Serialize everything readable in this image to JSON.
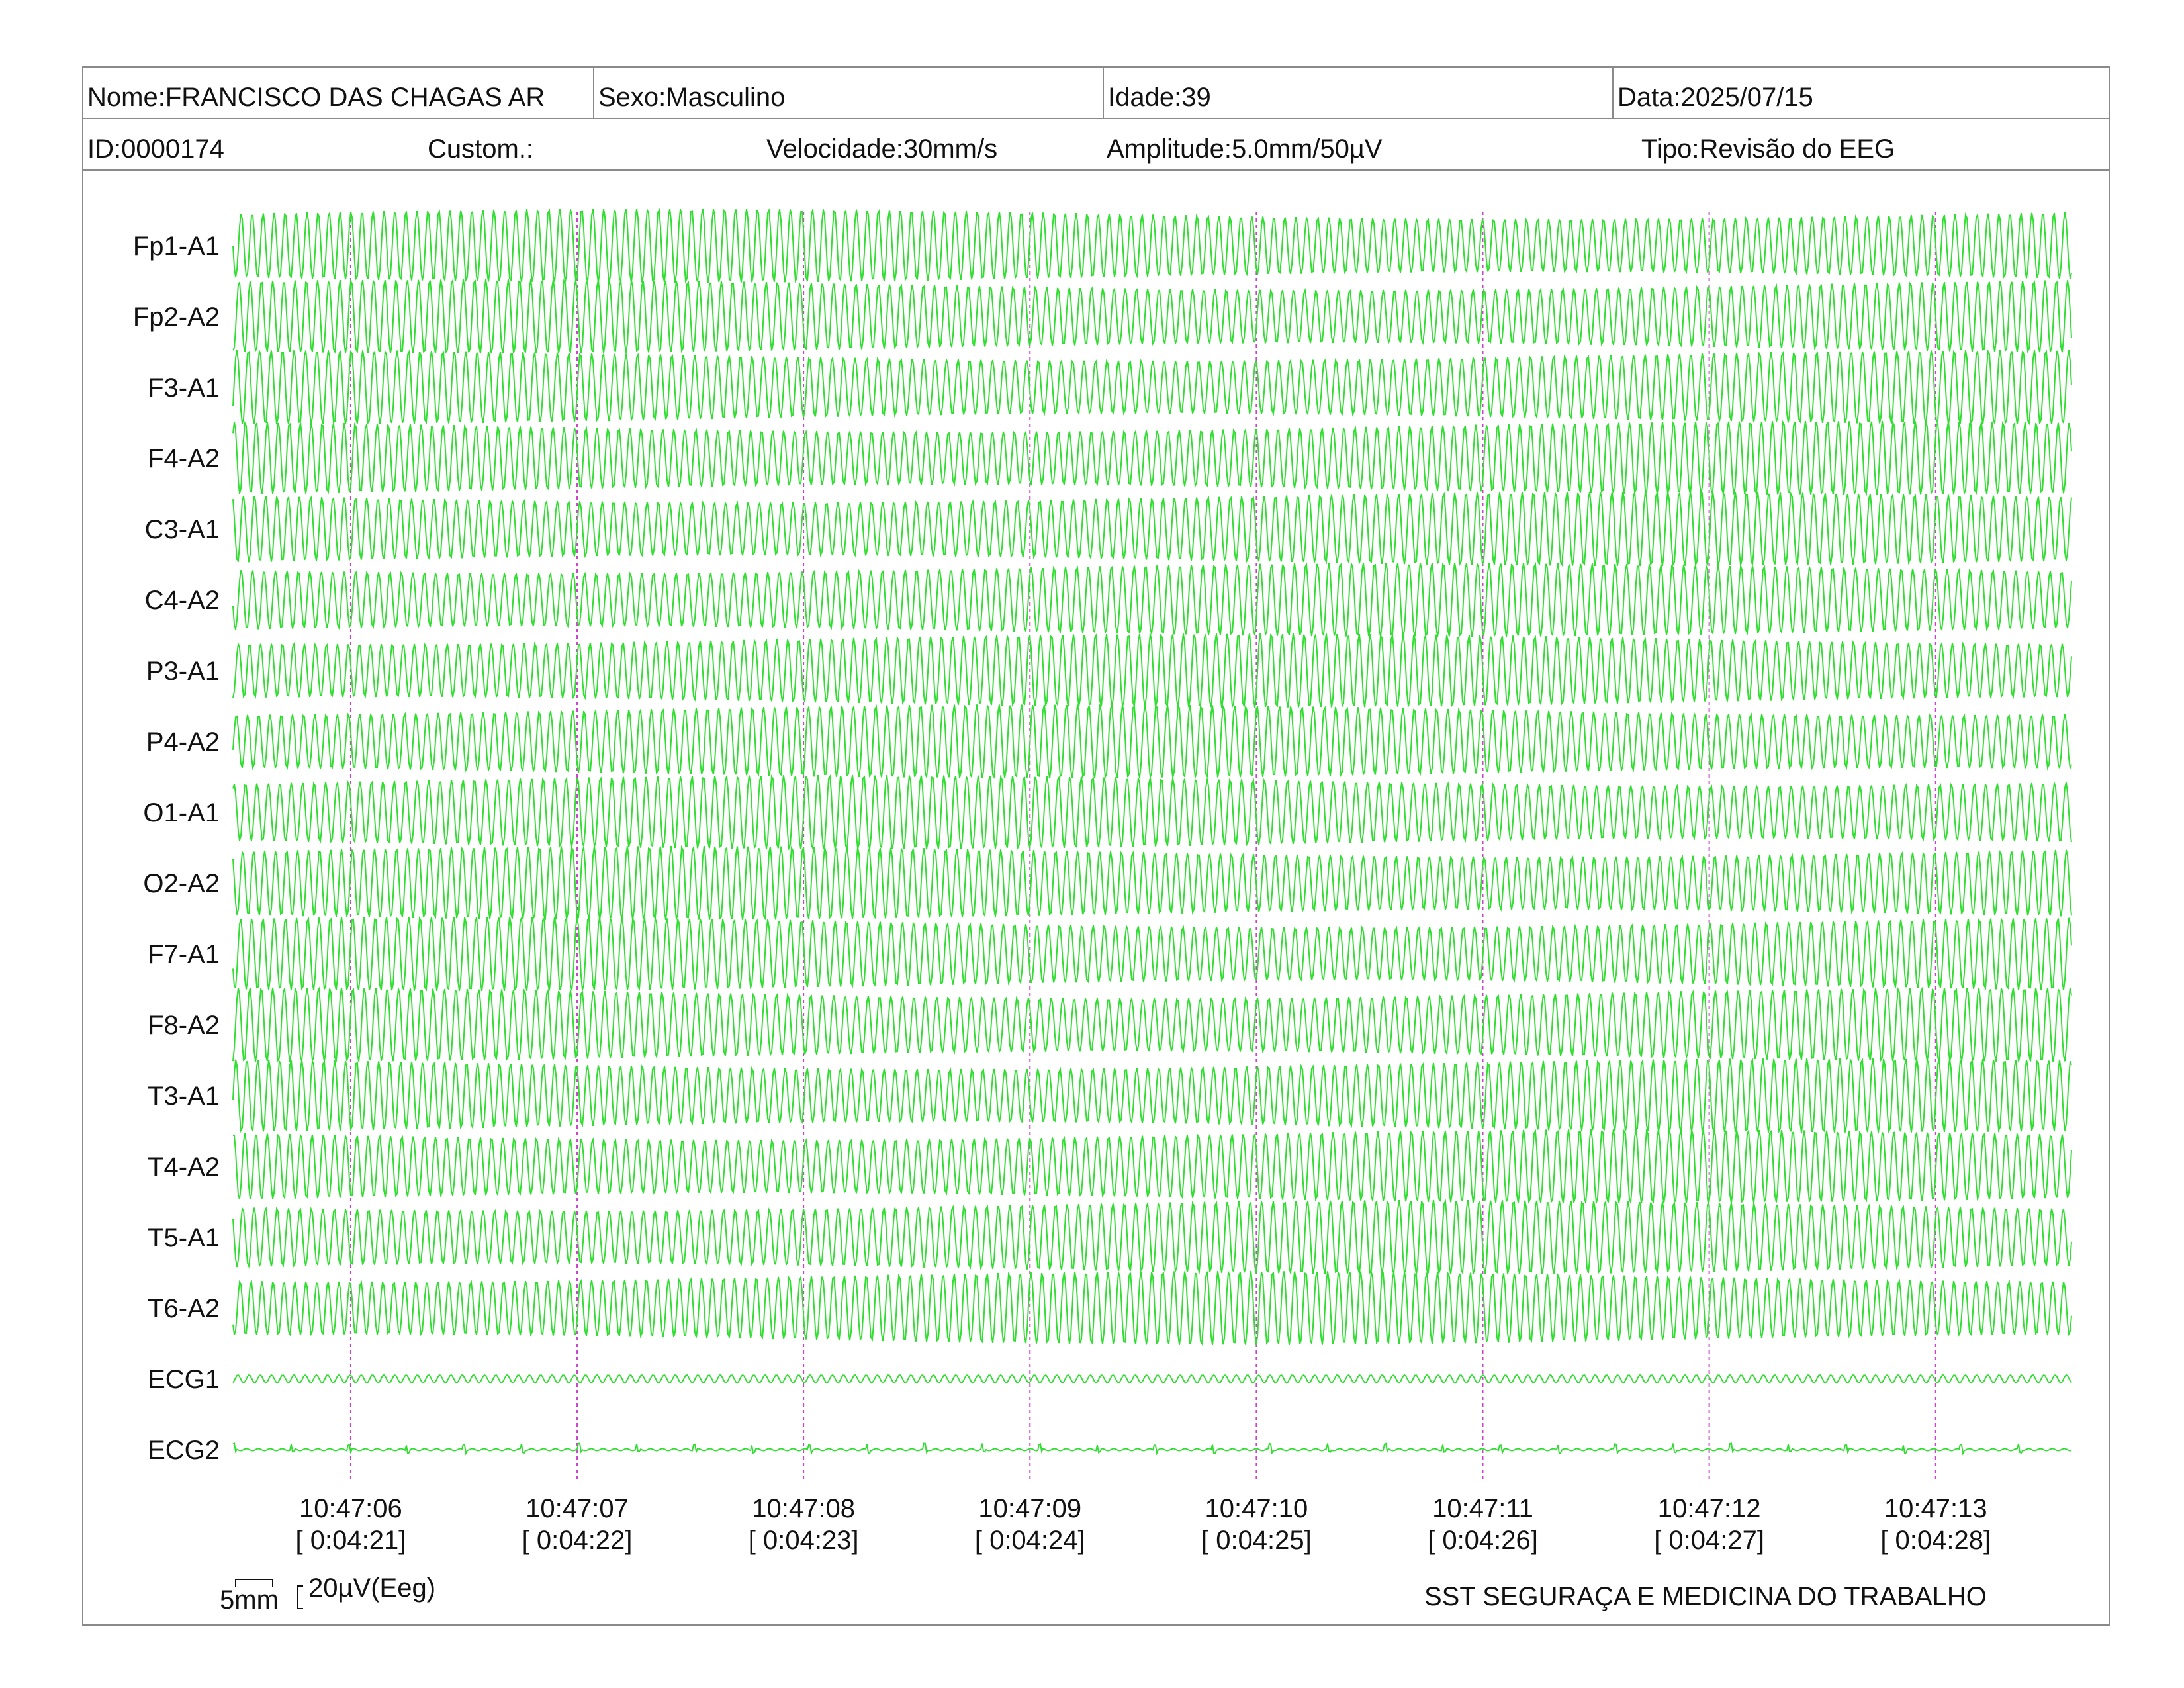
{
  "header": {
    "nome": "Nome:FRANCISCO DAS CHAGAS AR",
    "sexo": "Sexo:Masculino",
    "idade": "Idade:39",
    "data": "Data:2025/07/15",
    "id": "ID:0000174",
    "custom": "Custom.:",
    "velocidade": "Velocidade:30mm/s",
    "amplitude": "Amplitude:5.0mm/50µV",
    "tipo": "Tipo:Revisão do EEG"
  },
  "scale": {
    "time_label": "5mm",
    "amp_label": "20µV(Eeg)"
  },
  "footer": {
    "company": "SST SEGURAÇA E MEDICINA DO TRABALHO"
  },
  "colors": {
    "trace": "#33dd33",
    "marker": "#cc44cc",
    "border": "#8a8a8a"
  },
  "chart_data": {
    "type": "line",
    "title": "",
    "xlabel": "",
    "ylabel": "",
    "grid": false,
    "xlim": [
      5.48,
      13.6
    ],
    "channels": [
      "Fp1-A1",
      "Fp2-A2",
      "F3-A1",
      "F4-A2",
      "C3-A1",
      "C4-A2",
      "P3-A1",
      "P4-A2",
      "O1-A1",
      "O2-A2",
      "F7-A1",
      "F8-A2",
      "T3-A1",
      "T4-A2",
      "T5-A1",
      "T6-A2",
      "ECG1",
      "ECG2"
    ],
    "time_markers": [
      {
        "clock": "10:47:06",
        "elapsed": "[ 0:04:21]",
        "t": 6
      },
      {
        "clock": "10:47:07",
        "elapsed": "[ 0:04:22]",
        "t": 7
      },
      {
        "clock": "10:47:08",
        "elapsed": "[ 0:04:23]",
        "t": 8
      },
      {
        "clock": "10:47:09",
        "elapsed": "[ 0:04:24]",
        "t": 9
      },
      {
        "clock": "10:47:10",
        "elapsed": "[ 0:04:25]",
        "t": 10
      },
      {
        "clock": "10:47:11",
        "elapsed": "[ 0:04:26]",
        "t": 11
      },
      {
        "clock": "10:47:12",
        "elapsed": "[ 0:04:27]",
        "t": 12
      },
      {
        "clock": "10:47:13",
        "elapsed": "[ 0:04:28]",
        "t": 13
      }
    ]
  }
}
